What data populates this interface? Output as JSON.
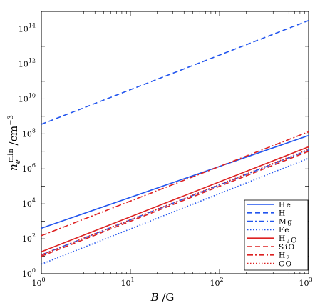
{
  "chart_data": {
    "type": "line",
    "title": "",
    "xlabel": "B /G",
    "ylabel": "n_e^min /cm^-3",
    "xscale": "log",
    "yscale": "log",
    "xlim": [
      1,
      1000
    ],
    "ylim": [
      1,
      1000000000000000.0
    ],
    "x_ticks": [
      {
        "value": 1,
        "base": "10",
        "exp": "0"
      },
      {
        "value": 10,
        "base": "10",
        "exp": "1"
      },
      {
        "value": 100,
        "base": "10",
        "exp": "2"
      },
      {
        "value": 1000,
        "base": "10",
        "exp": "3"
      }
    ],
    "y_ticks": [
      {
        "value": 1,
        "base": "10",
        "exp": "0"
      },
      {
        "value": 100,
        "base": "10",
        "exp": "2"
      },
      {
        "value": 10000,
        "base": "10",
        "exp": "4"
      },
      {
        "value": 1000000,
        "base": "10",
        "exp": "6"
      },
      {
        "value": 100000000,
        "base": "10",
        "exp": "8"
      },
      {
        "value": 10000000000,
        "base": "10",
        "exp": "10"
      },
      {
        "value": 1000000000000,
        "base": "10",
        "exp": "12"
      },
      {
        "value": 100000000000000,
        "base": "10",
        "exp": "14"
      }
    ],
    "grid": false,
    "legend_position": "bottom-right",
    "series": [
      {
        "name": "He",
        "display": "He",
        "color": "#2255ee",
        "dash": "solid",
        "x": [
          1,
          1000
        ],
        "y": [
          400,
          80000000.0
        ]
      },
      {
        "name": "H",
        "display": "H",
        "color": "#2255ee",
        "dash": "dashed",
        "x": [
          1,
          1000
        ],
        "y": [
          350000000.0,
          300000000000000.0
        ]
      },
      {
        "name": "Mg",
        "display": "Mg",
        "color": "#2255ee",
        "dash": "dashdot",
        "x": [
          1,
          1000
        ],
        "y": [
          12,
          12000000.0
        ]
      },
      {
        "name": "Fe",
        "display": "Fe",
        "color": "#2255ee",
        "dash": "dotted",
        "x": [
          1,
          1000
        ],
        "y": [
          3.5,
          4000000.0
        ]
      },
      {
        "name": "H2O",
        "display": "H2O",
        "color": "#dd2222",
        "dash": "solid",
        "x": [
          1,
          1000
        ],
        "y": [
          18,
          18000000.0
        ]
      },
      {
        "name": "SiO",
        "display": "SiO",
        "color": "#dd2222",
        "dash": "dashed",
        "x": [
          1,
          1000
        ],
        "y": [
          10,
          10000000.0
        ]
      },
      {
        "name": "H2",
        "display": "H2",
        "color": "#dd2222",
        "dash": "dashdot",
        "x": [
          1,
          1000
        ],
        "y": [
          150,
          130000000.0
        ]
      },
      {
        "name": "CO",
        "display": "CO",
        "color": "#dd2222",
        "dash": "dotted",
        "x": [
          1,
          1000
        ],
        "y": [
          12,
          13000000.0
        ]
      }
    ]
  }
}
